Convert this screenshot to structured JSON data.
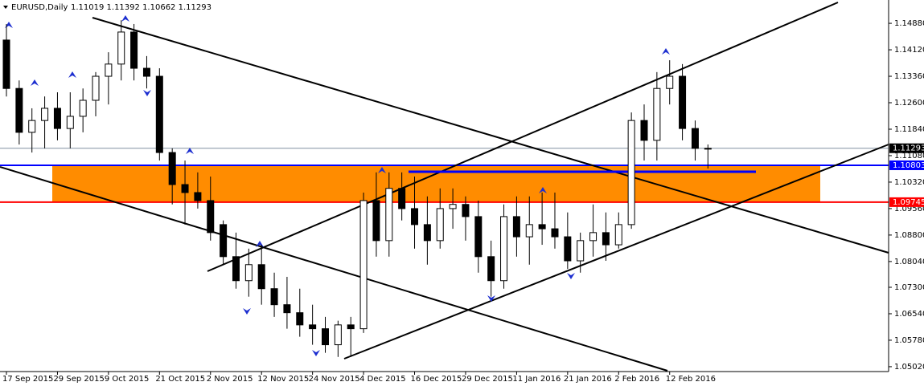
{
  "chart_data": {
    "type": "candlestick",
    "title": "EURUSD,Daily",
    "subtitle": "1.11019 1.11392 1.10662 1.11293",
    "categories": [
      "17 Sep 2015",
      null,
      null,
      null,
      "29 Sep 2015",
      null,
      null,
      null,
      "9 Oct 2015",
      null,
      null,
      null,
      "21 Oct 2015",
      null,
      null,
      null,
      "2 Nov 2015",
      null,
      null,
      null,
      "12 Nov 2015",
      null,
      null,
      null,
      "24 Nov 2015",
      null,
      null,
      null,
      "4 Dec 2015",
      null,
      null,
      null,
      "16 Dec 2015",
      null,
      null,
      null,
      "29 Dec 2015",
      null,
      null,
      null,
      "11 Jan 2016",
      null,
      null,
      null,
      "21 Jan 2016",
      null,
      null,
      null,
      "2 Feb 2016",
      null,
      null,
      null,
      "12 Feb 2016",
      null,
      null,
      null
    ],
    "open": [
      1.144,
      1.1301,
      1.1175,
      1.1209,
      1.1244,
      1.1186,
      1.1221,
      1.1267,
      1.1336,
      1.1371,
      1.1463,
      1.1359,
      1.1336,
      1.1117,
      1.1025,
      1.1002,
      1.0979,
      1.091,
      1.0818,
      1.0749,
      1.0795,
      1.0726,
      1.068,
      1.0657,
      1.0622,
      1.0611,
      1.0565,
      1.0622,
      1.0611,
      1.0979,
      1.0864,
      1.1014,
      1.0956,
      1.091,
      1.0864,
      1.0956,
      1.0968,
      1.0933,
      1.0818,
      1.0749,
      1.0933,
      1.0875,
      1.091,
      1.0898,
      1.0875,
      1.0806,
      1.0864,
      1.0887,
      1.0852,
      1.091,
      1.1209,
      1.1152,
      1.1301,
      1.1336,
      1.1186,
      1.1129
    ],
    "high": [
      1.1486,
      1.1324,
      1.1244,
      1.1278,
      1.129,
      1.129,
      1.1301,
      1.1348,
      1.1405,
      1.1497,
      1.1486,
      1.1394,
      1.1359,
      1.1129,
      1.1094,
      1.106,
      1.1048,
      1.0922,
      1.0887,
      1.0841,
      1.0852,
      1.0772,
      1.076,
      1.0726,
      1.068,
      1.0645,
      1.0634,
      1.0645,
      1.1002,
      1.106,
      1.106,
      1.106,
      1.1048,
      1.0991,
      1.1014,
      1.1014,
      1.0991,
      1.0979,
      1.0864,
      1.0968,
      1.0991,
      1.0991,
      1.1002,
      1.1002,
      1.0945,
      1.0887,
      1.0968,
      1.0945,
      1.0945,
      1.1232,
      1.1255,
      1.1348,
      1.1382,
      1.1371,
      1.1209,
      1.114
    ],
    "low": [
      1.1278,
      1.114,
      1.1117,
      1.1129,
      1.1152,
      1.1129,
      1.1175,
      1.1221,
      1.1255,
      1.1324,
      1.1324,
      1.1301,
      1.1094,
      1.0968,
      1.091,
      1.0956,
      1.0864,
      1.0795,
      1.0726,
      1.0703,
      1.068,
      1.0645,
      1.0611,
      1.0588,
      1.0565,
      1.0542,
      1.053,
      1.053,
      1.0599,
      1.0818,
      1.0818,
      1.0922,
      1.0841,
      1.0795,
      1.0841,
      1.0898,
      1.0864,
      1.0772,
      1.0703,
      1.0726,
      1.0818,
      1.0795,
      1.0852,
      1.0841,
      1.0783,
      1.0772,
      1.0818,
      1.0806,
      1.0841,
      1.0898,
      1.1094,
      1.1094,
      1.1255,
      1.1152,
      1.1094,
      1.1071
    ],
    "close": [
      1.1301,
      1.1175,
      1.1209,
      1.1244,
      1.1186,
      1.1221,
      1.1267,
      1.1336,
      1.1371,
      1.1463,
      1.1359,
      1.1336,
      1.1117,
      1.1025,
      1.1002,
      1.0979,
      1.0887,
      1.0818,
      1.0749,
      1.0795,
      1.0726,
      1.068,
      1.0657,
      1.0622,
      1.0611,
      1.0565,
      1.0622,
      1.0611,
      1.0979,
      1.0864,
      1.1014,
      1.0956,
      1.091,
      1.0864,
      1.0956,
      1.0968,
      1.0933,
      1.0818,
      1.0749,
      1.0933,
      1.0875,
      1.091,
      1.0898,
      1.0875,
      1.0806,
      1.0864,
      1.0887,
      1.0852,
      1.091,
      1.1209,
      1.1152,
      1.1301,
      1.1336,
      1.1186,
      1.1129,
      1.1129
    ],
    "up_color": "#ffffff",
    "down_color": "#000000",
    "ylim": [
      1.0488,
      1.1555
    ],
    "yticks": [
      {
        "value": 1.1488,
        "label": "1.14880"
      },
      {
        "value": 1.1412,
        "label": "1.14120"
      },
      {
        "value": 1.1336,
        "label": "1.13360"
      },
      {
        "value": 1.126,
        "label": "1.12600"
      },
      {
        "value": 1.1184,
        "label": "1.11840"
      },
      {
        "value": 1.1108,
        "label": "1.11080"
      },
      {
        "value": 1.1032,
        "label": "1.10320"
      },
      {
        "value": 1.0956,
        "label": "1.09560"
      },
      {
        "value": 1.088,
        "label": "1.08800"
      },
      {
        "value": 1.0804,
        "label": "1.08040"
      },
      {
        "value": 1.073,
        "label": "1.07300"
      },
      {
        "value": 1.0654,
        "label": "1.06540"
      },
      {
        "value": 1.0578,
        "label": "1.05780"
      },
      {
        "value": 1.0502,
        "label": "1.05020"
      }
    ],
    "levels": [
      {
        "value": 1.11293,
        "color": "#8090a0",
        "label_color": "#000000"
      },
      {
        "value": 1.10803,
        "color": "#0000ff",
        "label_color": "#0000ff"
      },
      {
        "value": 1.09745,
        "color": "#ff0000",
        "label_color": "#ff0000"
      }
    ],
    "zone_color": "#ff8c00"
  }
}
